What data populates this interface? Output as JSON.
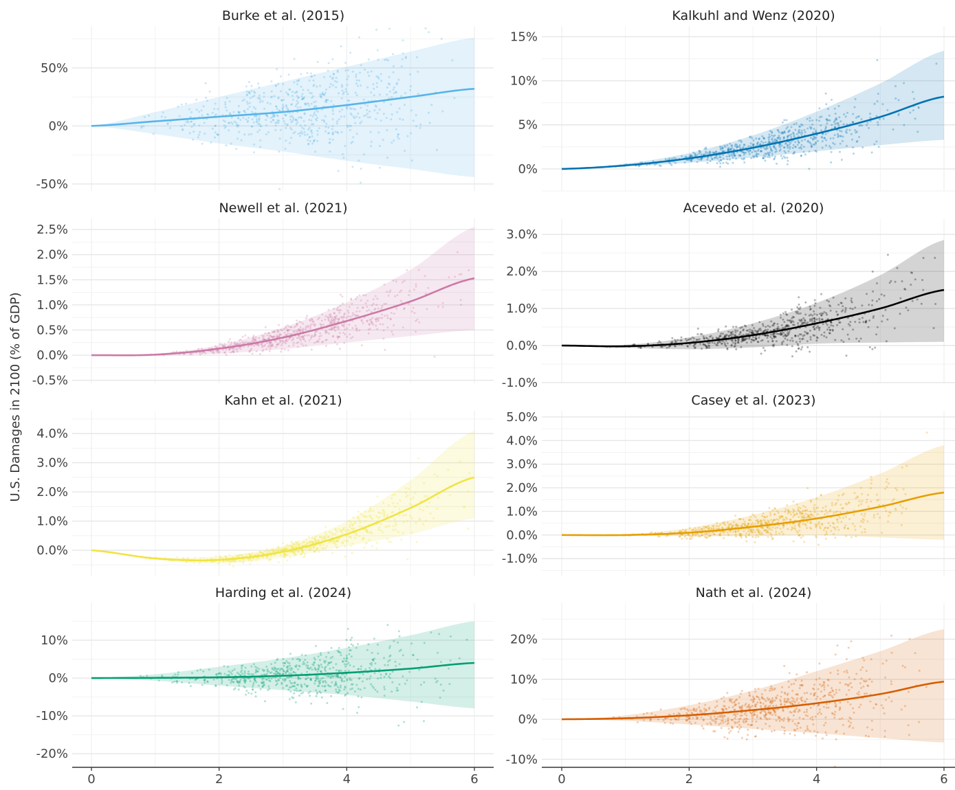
{
  "chart_data": {
    "type": "scatter",
    "ylabel": "U.S. Damages in 2100 (% of GDP)",
    "xlabel": "",
    "xlim": [
      0,
      6
    ],
    "xticks": [
      0,
      2,
      4,
      6
    ],
    "xtick_labels": [
      "0",
      "2",
      "4",
      "6"
    ],
    "grid": true,
    "panels": [
      {
        "title": "Burke et al. (2015)",
        "color": "#56B4E9",
        "ylim": [
          -56,
          86
        ],
        "yticks": [
          -50,
          0,
          50
        ],
        "ytick_labels": [
          "-50%",
          "0%",
          "50%"
        ],
        "x": [
          0,
          1,
          2,
          3,
          4,
          5,
          6
        ],
        "mean": [
          0,
          4,
          8,
          12,
          18,
          25,
          32
        ],
        "lower": [
          0,
          -7,
          -15,
          -22,
          -30,
          -37,
          -44
        ],
        "upper": [
          0,
          12,
          25,
          38,
          51,
          64,
          76
        ]
      },
      {
        "title": "Kalkuhl and Wenz (2020)",
        "color": "#0072B2",
        "ylim": [
          -2.5,
          16.2
        ],
        "yticks": [
          0,
          5,
          10,
          15
        ],
        "ytick_labels": [
          "0%",
          "5%",
          "10%",
          "15%"
        ],
        "x": [
          0,
          1,
          2,
          3,
          4,
          5,
          6
        ],
        "mean": [
          0,
          0.4,
          1.2,
          2.4,
          4.0,
          5.9,
          8.2
        ],
        "lower": [
          0,
          0.3,
          0.7,
          1.3,
          2.0,
          2.7,
          3.3
        ],
        "upper": [
          0,
          0.6,
          1.8,
          3.8,
          6.5,
          9.7,
          13.4
        ]
      },
      {
        "title": "Newell et al. (2021)",
        "color": "#CC79A7",
        "ylim": [
          -0.56,
          2.72
        ],
        "yticks": [
          -0.5,
          0,
          0.5,
          1,
          1.5,
          2,
          2.5
        ],
        "ytick_labels": [
          "-0.5%",
          "0.0%",
          "0.5%",
          "1.0%",
          "1.5%",
          "2.0%",
          "2.5%"
        ],
        "x": [
          0,
          1,
          2,
          3,
          4,
          5,
          6
        ],
        "mean": [
          0,
          0.01,
          0.13,
          0.35,
          0.68,
          1.07,
          1.53
        ],
        "lower": [
          0,
          0.0,
          0.03,
          0.12,
          0.25,
          0.38,
          0.5
        ],
        "upper": [
          0,
          0.03,
          0.2,
          0.55,
          1.05,
          1.7,
          2.55
        ]
      },
      {
        "title": "Acevedo et al. (2020)",
        "color": "#000000",
        "ylim": [
          -1.02,
          3.43
        ],
        "yticks": [
          -1,
          0,
          1,
          2,
          3
        ],
        "ytick_labels": [
          "-1.0%",
          "0.0%",
          "1.0%",
          "2.0%",
          "3.0%"
        ],
        "x": [
          0,
          1,
          2,
          3,
          4,
          5,
          6
        ],
        "mean": [
          0,
          -0.02,
          0.07,
          0.28,
          0.6,
          1.0,
          1.5
        ],
        "lower": [
          0,
          -0.06,
          -0.1,
          -0.05,
          0.05,
          0.08,
          0.1
        ],
        "upper": [
          0,
          0.02,
          0.22,
          0.6,
          1.15,
          1.9,
          2.85
        ]
      },
      {
        "title": "Kahn et al. (2021)",
        "color": "#F0E442",
        "ylim": [
          -0.87,
          4.78
        ],
        "yticks": [
          0,
          1,
          2,
          3,
          4
        ],
        "ytick_labels": [
          "0.0%",
          "1.0%",
          "2.0%",
          "3.0%",
          "4.0%"
        ],
        "x": [
          0,
          1,
          2,
          3,
          4,
          5,
          6
        ],
        "mean": [
          0,
          -0.28,
          -0.33,
          -0.05,
          0.55,
          1.45,
          2.5
        ],
        "lower": [
          0,
          -0.32,
          -0.45,
          -0.25,
          0.15,
          0.55,
          1.1
        ],
        "upper": [
          0,
          -0.24,
          -0.2,
          0.15,
          1.0,
          2.4,
          4.1
        ]
      },
      {
        "title": "Casey et al. (2023)",
        "color": "#E69F00",
        "ylim": [
          -1.72,
          5.26
        ],
        "yticks": [
          -1,
          0,
          1,
          2,
          3,
          4,
          5
        ],
        "ytick_labels": [
          "-1.0%",
          "0.0%",
          "1.0%",
          "2.0%",
          "3.0%",
          "4.0%",
          "5.0%"
        ],
        "x": [
          0,
          1,
          2,
          3,
          4,
          5,
          6
        ],
        "mean": [
          0,
          0,
          0.1,
          0.35,
          0.7,
          1.2,
          1.8
        ],
        "lower": [
          0,
          -0.02,
          -0.05,
          -0.05,
          0.0,
          -0.1,
          -0.2
        ],
        "upper": [
          0,
          0.03,
          0.3,
          0.85,
          1.6,
          2.6,
          3.8
        ]
      },
      {
        "title": "Harding et al. (2024)",
        "color": "#009E73",
        "ylim": [
          -23.6,
          19.8
        ],
        "yticks": [
          -20,
          -10,
          0,
          10
        ],
        "ytick_labels": [
          "-20%",
          "-10%",
          "0%",
          "10%"
        ],
        "x": [
          0,
          1,
          2,
          3,
          4,
          5,
          6
        ],
        "mean": [
          0,
          0.05,
          0.2,
          0.6,
          1.4,
          2.5,
          4.0
        ],
        "lower": [
          0,
          -0.7,
          -2,
          -3.2,
          -4.5,
          -6.2,
          -8
        ],
        "upper": [
          0,
          1,
          3,
          5.2,
          8,
          11.3,
          15
        ]
      },
      {
        "title": "Nath et al. (2024)",
        "color": "#D55E00",
        "ylim": [
          -12,
          29
        ],
        "yticks": [
          -10,
          0,
          10,
          20
        ],
        "ytick_labels": [
          "-10%",
          "0%",
          "10%",
          "20%"
        ],
        "x": [
          0,
          1,
          2,
          3,
          4,
          5,
          6
        ],
        "mean": [
          0,
          0.25,
          1.0,
          2.3,
          4.0,
          6.3,
          9.4
        ],
        "lower": [
          0,
          -0.4,
          -1.3,
          -2.4,
          -3.5,
          -4.7,
          -5.8
        ],
        "upper": [
          0,
          1.0,
          3.5,
          7.2,
          12,
          17,
          22.5
        ]
      }
    ]
  }
}
